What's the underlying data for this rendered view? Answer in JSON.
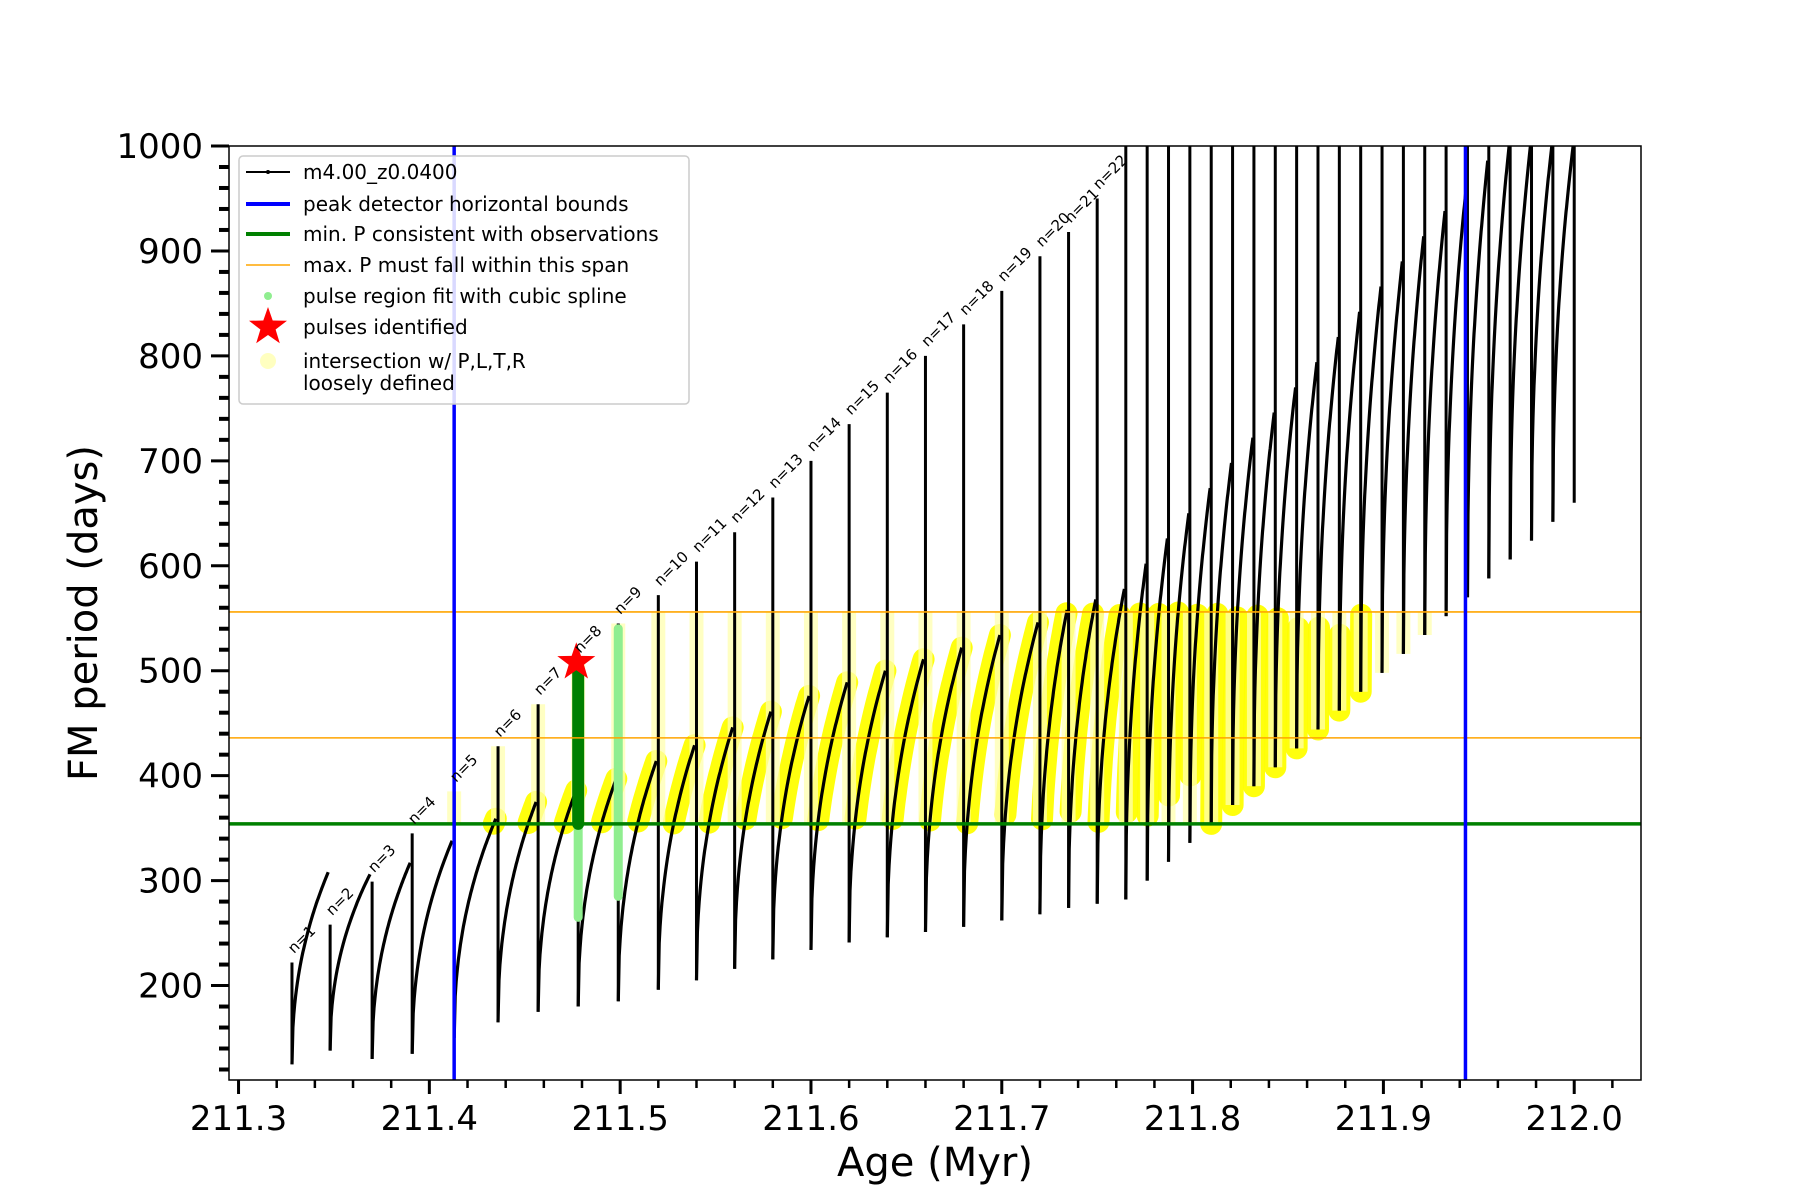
{
  "chart_data": {
    "type": "line",
    "xlabel": "Age (Myr)",
    "ylabel": "FM period (days)",
    "xlim": [
      211.295,
      212.035
    ],
    "ylim": [
      110,
      1000
    ],
    "xticks": [
      "211.3",
      "211.4",
      "211.5",
      "211.6",
      "211.7",
      "211.8",
      "211.9",
      "212.0"
    ],
    "yticks": [
      "200",
      "300",
      "400",
      "500",
      "600",
      "700",
      "800",
      "900",
      "1000"
    ],
    "grid": false,
    "legend_position": "top-left",
    "legend": [
      {
        "label": "m4.00_z0.0400",
        "kind": "line-marker",
        "color": "#000000"
      },
      {
        "label": "peak detector horizontal bounds",
        "kind": "line",
        "color": "#0000ff"
      },
      {
        "label": "min. P consistent with observations",
        "kind": "line",
        "color": "#008000"
      },
      {
        "label": "max. P must fall within this span",
        "kind": "thin-line",
        "color": "#ffa500"
      },
      {
        "label": "pulse region fit with cubic spline",
        "kind": "dot",
        "color": "#90ee90"
      },
      {
        "label": "pulses identified",
        "kind": "star",
        "color": "#ff0000"
      },
      {
        "label": "intersection w/ P,L,T,R",
        "label2": "loosely defined",
        "kind": "big-dot",
        "color": "#ffffc0"
      }
    ],
    "vertical_lines": [
      {
        "x": 211.413,
        "color": "#0000ff"
      },
      {
        "x": 211.943,
        "color": "#0000ff"
      }
    ],
    "horizontal_lines": [
      {
        "y": 354,
        "color": "#008000",
        "role": "min"
      },
      {
        "y": 436,
        "color": "#ffa500",
        "role": "max-low"
      },
      {
        "y": 556,
        "color": "#ffa500",
        "role": "max-high"
      }
    ],
    "pulse_identified": {
      "x": 211.477,
      "y": 508,
      "color": "#ff0000"
    },
    "pulse_labels": [
      "n=1",
      "n=2",
      "n=3",
      "n=4",
      "n=5",
      "n=6",
      "n=7",
      "n=8",
      "n=9",
      "n=10",
      "n=11",
      "n=12",
      "n=13",
      "n=14",
      "n=15",
      "n=16",
      "n=17",
      "n=18",
      "n=19",
      "n=20",
      "n=21",
      "n=22"
    ],
    "pulses": [
      {
        "n": 1,
        "x": 211.328,
        "y_start": 125,
        "y_peak": 222
      },
      {
        "n": 2,
        "x": 211.348,
        "y_start": 138,
        "y_peak": 258
      },
      {
        "n": 3,
        "x": 211.37,
        "y_start": 130,
        "y_peak": 299
      },
      {
        "n": 4,
        "x": 211.391,
        "y_start": 135,
        "y_peak": 345
      },
      {
        "n": 5,
        "x": 211.413,
        "y_start": 150,
        "y_peak": 385
      },
      {
        "n": 6,
        "x": 211.436,
        "y_start": 165,
        "y_peak": 428
      },
      {
        "n": 7,
        "x": 211.457,
        "y_start": 175,
        "y_peak": 468
      },
      {
        "n": 8,
        "x": 211.478,
        "y_start": 180,
        "y_peak": 508
      },
      {
        "n": 9,
        "x": 211.499,
        "y_start": 185,
        "y_peak": 545
      },
      {
        "n": 10,
        "x": 211.52,
        "y_start": 196,
        "y_peak": 572
      },
      {
        "n": 11,
        "x": 211.54,
        "y_start": 205,
        "y_peak": 604
      },
      {
        "n": 12,
        "x": 211.56,
        "y_start": 216,
        "y_peak": 632
      },
      {
        "n": 13,
        "x": 211.58,
        "y_start": 225,
        "y_peak": 665
      },
      {
        "n": 14,
        "x": 211.6,
        "y_start": 234,
        "y_peak": 700
      },
      {
        "n": 15,
        "x": 211.62,
        "y_start": 241,
        "y_peak": 735
      },
      {
        "n": 16,
        "x": 211.64,
        "y_start": 246,
        "y_peak": 765
      },
      {
        "n": 17,
        "x": 211.66,
        "y_start": 251,
        "y_peak": 800
      },
      {
        "n": 18,
        "x": 211.68,
        "y_start": 256,
        "y_peak": 830
      },
      {
        "n": 19,
        "x": 211.7,
        "y_start": 262,
        "y_peak": 862
      },
      {
        "n": 20,
        "x": 211.72,
        "y_start": 268,
        "y_peak": 895
      },
      {
        "n": 21,
        "x": 211.735,
        "y_start": 274,
        "y_peak": 918
      },
      {
        "n": 22,
        "x": 211.75,
        "y_start": 278,
        "y_peak": 950
      }
    ],
    "late_pulses": {
      "x_start": 211.765,
      "x_end": 212.0,
      "count": 22,
      "y_start_first": 282,
      "y_start_last": 660,
      "y_peak": 1000
    },
    "yellow_band": {
      "y_min": 354,
      "y_max": 556
    }
  }
}
